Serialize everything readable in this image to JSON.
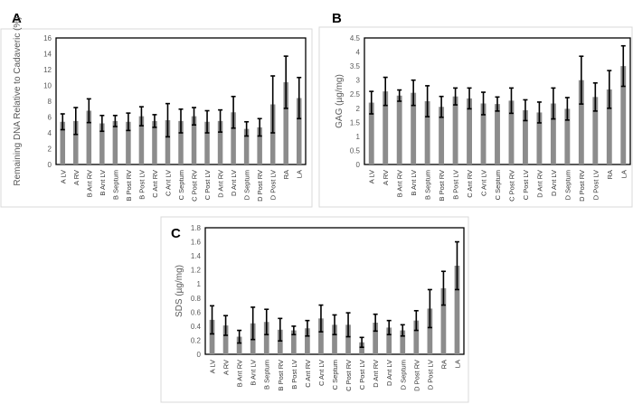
{
  "chart_data": [
    {
      "type": "bar",
      "panel": "A",
      "ylabel": "Remaining DNA Relative to Cadaveric (%)",
      "ylim": [
        0,
        16
      ],
      "yticks": [
        0,
        2,
        4,
        6,
        8,
        10,
        12,
        14,
        16
      ],
      "categories": [
        "A LV",
        "A RV",
        "B Ant RV",
        "B Ant LV",
        "B Septum",
        "B Post RV",
        "B Post LV",
        "C Ant RV",
        "C Ant LV",
        "C Septum",
        "C Post RV",
        "C Post LV",
        "D Ant RV",
        "D Ant LV",
        "D Septum",
        "D Post RV",
        "D Post LV",
        "RA",
        "LA"
      ],
      "values": [
        5.4,
        5.5,
        6.8,
        5.2,
        5.5,
        5.4,
        6.1,
        5.5,
        5.6,
        5.5,
        6.1,
        5.4,
        5.5,
        6.6,
        4.5,
        4.7,
        7.6,
        10.4,
        8.4
      ],
      "errors": [
        1.0,
        1.7,
        1.5,
        1.0,
        0.7,
        1.1,
        1.2,
        0.8,
        2.1,
        1.5,
        1.1,
        1.4,
        1.4,
        2.0,
        0.9,
        1.1,
        3.6,
        3.3,
        2.6
      ],
      "grid": false,
      "bar_color": "#8c8c8c"
    },
    {
      "type": "bar",
      "panel": "B",
      "ylabel": "GAG (µg/mg)",
      "ylim": [
        0,
        4.5
      ],
      "yticks": [
        0,
        0.5,
        1,
        1.5,
        2,
        2.5,
        3,
        3.5,
        4,
        4.5
      ],
      "categories": [
        "A LV",
        "A RV",
        "B Ant RV",
        "B Ant LV",
        "B Septum",
        "B Post RV",
        "B Post LV",
        "C Ant RV",
        "C Ant LV",
        "C Septum",
        "C Post RV",
        "C Post LV",
        "D Ant RV",
        "D Ant LV",
        "D Septum",
        "D Post RV",
        "D Post LV",
        "RA",
        "LA"
      ],
      "values": [
        2.2,
        2.6,
        2.45,
        2.55,
        2.25,
        2.05,
        2.42,
        2.35,
        2.17,
        2.15,
        2.27,
        1.93,
        1.85,
        2.17,
        1.98,
        3.0,
        2.4,
        2.67,
        3.5
      ],
      "errors": [
        0.4,
        0.5,
        0.2,
        0.45,
        0.55,
        0.37,
        0.3,
        0.37,
        0.4,
        0.25,
        0.45,
        0.37,
        0.37,
        0.55,
        0.4,
        0.85,
        0.5,
        0.67,
        0.72
      ],
      "grid": false,
      "bar_color": "#8c8c8c"
    },
    {
      "type": "bar",
      "panel": "C",
      "ylabel": "SDS (µg/mg)",
      "ylim": [
        0,
        1.8
      ],
      "yticks": [
        0,
        0.2,
        0.4,
        0.6,
        0.8,
        1,
        1.2,
        1.4,
        1.6,
        1.8
      ],
      "categories": [
        "A LV",
        "A RV",
        "B Ant RV",
        "B Ant LV",
        "B Septum",
        "B Post RV",
        "B Post LV",
        "C Ant RV",
        "C Ant LV",
        "C Septum",
        "C Post RV",
        "C Post LV",
        "D Ant RV",
        "D Ant LV",
        "D Septum",
        "D Post RV",
        "D Post LV",
        "RA",
        "LA"
      ],
      "values": [
        0.49,
        0.41,
        0.25,
        0.44,
        0.46,
        0.35,
        0.34,
        0.37,
        0.51,
        0.42,
        0.42,
        0.17,
        0.45,
        0.38,
        0.34,
        0.48,
        0.65,
        0.94,
        1.26
      ],
      "errors": [
        0.2,
        0.14,
        0.09,
        0.23,
        0.18,
        0.16,
        0.06,
        0.11,
        0.19,
        0.14,
        0.17,
        0.07,
        0.12,
        0.1,
        0.08,
        0.14,
        0.27,
        0.24,
        0.34
      ],
      "grid": false,
      "bar_color": "#8c8c8c"
    }
  ]
}
